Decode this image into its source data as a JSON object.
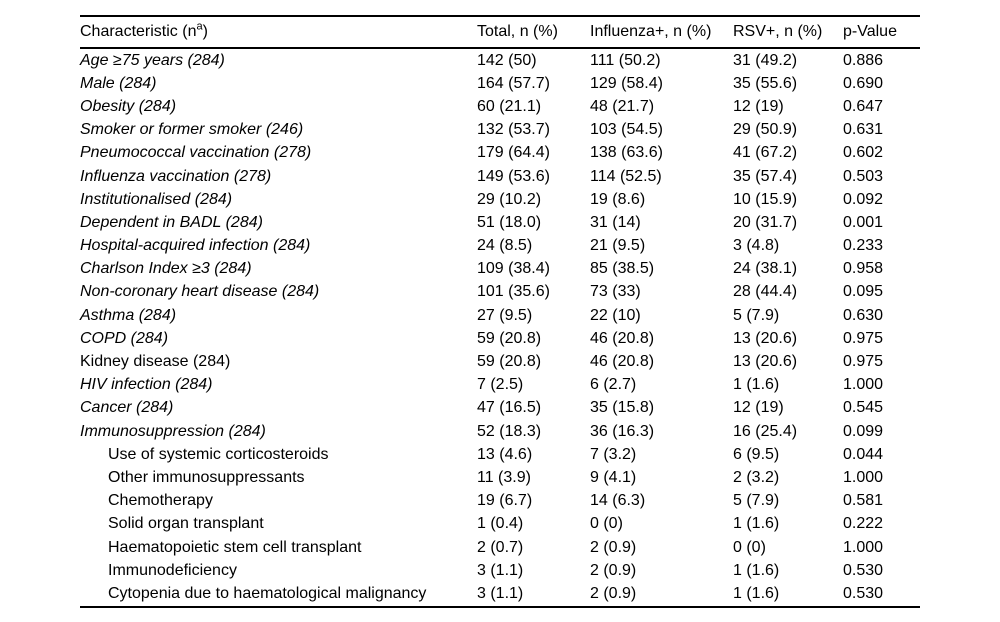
{
  "colors": {
    "background": "#ffffff",
    "text": "#000000",
    "rule": "#000000"
  },
  "table": {
    "header": {
      "characteristic_prefix": "Characteristic (n",
      "characteristic_sup": "a",
      "characteristic_suffix": ")",
      "total": "Total, n (%)",
      "influenza": "Influenza+, n (%)",
      "rsv": "RSV+, n (%)",
      "p_value": "p-Value"
    },
    "rows": [
      {
        "label": "Age ≥75 years (284)",
        "total": "142 (50)",
        "influenza": "111 (50.2)",
        "rsv": "31 (49.2)",
        "p": "0.886",
        "style": "italic"
      },
      {
        "label": "Male (284)",
        "total": "164 (57.7)",
        "influenza": "129 (58.4)",
        "rsv": "35 (55.6)",
        "p": "0.690",
        "style": "italic"
      },
      {
        "label": "Obesity (284)",
        "total": "60 (21.1)",
        "influenza": "48 (21.7)",
        "rsv": "12 (19)",
        "p": "0.647",
        "style": "italic"
      },
      {
        "label": "Smoker or former smoker (246)",
        "total": "132 (53.7)",
        "influenza": "103 (54.5)",
        "rsv": "29 (50.9)",
        "p": "0.631",
        "style": "italic"
      },
      {
        "label": "Pneumococcal vaccination (278)",
        "total": "179 (64.4)",
        "influenza": "138 (63.6)",
        "rsv": "41 (67.2)",
        "p": "0.602",
        "style": "italic"
      },
      {
        "label": "Influenza vaccination (278)",
        "total": "149 (53.6)",
        "influenza": "114 (52.5)",
        "rsv": "35 (57.4)",
        "p": "0.503",
        "style": "italic"
      },
      {
        "label": "Institutionalised (284)",
        "total": "29 (10.2)",
        "influenza": "19 (8.6)",
        "rsv": "10 (15.9)",
        "p": "0.092",
        "style": "italic"
      },
      {
        "label": "Dependent in BADL (284)",
        "total": "51 (18.0)",
        "influenza": "31 (14)",
        "rsv": "20 (31.7)",
        "p": "0.001",
        "style": "italic"
      },
      {
        "label": "Hospital-acquired infection (284)",
        "total": "24 (8.5)",
        "influenza": "21 (9.5)",
        "rsv": "3 (4.8)",
        "p": "0.233",
        "style": "italic"
      },
      {
        "label": "Charlson Index ≥3 (284)",
        "total": "109 (38.4)",
        "influenza": "85 (38.5)",
        "rsv": "24 (38.1)",
        "p": "0.958",
        "style": "italic"
      },
      {
        "label": "Non-coronary heart disease (284)",
        "total": "101 (35.6)",
        "influenza": "73 (33)",
        "rsv": "28 (44.4)",
        "p": "0.095",
        "style": "italic"
      },
      {
        "label": "Asthma (284)",
        "total": "27 (9.5)",
        "influenza": "22 (10)",
        "rsv": "5 (7.9)",
        "p": "0.630",
        "style": "italic"
      },
      {
        "label": "COPD (284)",
        "total": "59 (20.8)",
        "influenza": "46 (20.8)",
        "rsv": "13 (20.6)",
        "p": "0.975",
        "style": "italic"
      },
      {
        "label": "Kidney disease (284)",
        "total": "59 (20.8)",
        "influenza": "46 (20.8)",
        "rsv": "13 (20.6)",
        "p": "0.975",
        "style": "plain"
      },
      {
        "label": "HIV infection (284)",
        "total": "7 (2.5)",
        "influenza": "6 (2.7)",
        "rsv": "1 (1.6)",
        "p": "1.000",
        "style": "italic"
      },
      {
        "label": "Cancer (284)",
        "total": "47 (16.5)",
        "influenza": "35 (15.8)",
        "rsv": "12 (19)",
        "p": "0.545",
        "style": "italic"
      },
      {
        "label": "Immunosuppression (284)",
        "total": "52 (18.3)",
        "influenza": "36 (16.3)",
        "rsv": "16 (25.4)",
        "p": "0.099",
        "style": "italic"
      },
      {
        "label": "Use of systemic corticosteroids",
        "total": "13 (4.6)",
        "influenza": "7 (3.2)",
        "rsv": "6 (9.5)",
        "p": "0.044",
        "style": "sub"
      },
      {
        "label": "Other immunosuppressants",
        "total": "11 (3.9)",
        "influenza": "9 (4.1)",
        "rsv": "2 (3.2)",
        "p": "1.000",
        "style": "sub"
      },
      {
        "label": "Chemotherapy",
        "total": "19 (6.7)",
        "influenza": "14 (6.3)",
        "rsv": "5 (7.9)",
        "p": "0.581",
        "style": "sub"
      },
      {
        "label": "Solid organ transplant",
        "total": "1 (0.4)",
        "influenza": "0 (0)",
        "rsv": "1 (1.6)",
        "p": "0.222",
        "style": "sub"
      },
      {
        "label": "Haematopoietic stem cell transplant",
        "total": "2 (0.7)",
        "influenza": "2 (0.9)",
        "rsv": "0 (0)",
        "p": "1.000",
        "style": "sub"
      },
      {
        "label": "Immunodeficiency",
        "total": "3 (1.1)",
        "influenza": "2 (0.9)",
        "rsv": "1 (1.6)",
        "p": "0.530",
        "style": "sub"
      },
      {
        "label": "Cytopenia due to haematological malignancy",
        "total": "3 (1.1)",
        "influenza": "2 (0.9)",
        "rsv": "1 (1.6)",
        "p": "0.530",
        "style": "sub"
      }
    ]
  }
}
